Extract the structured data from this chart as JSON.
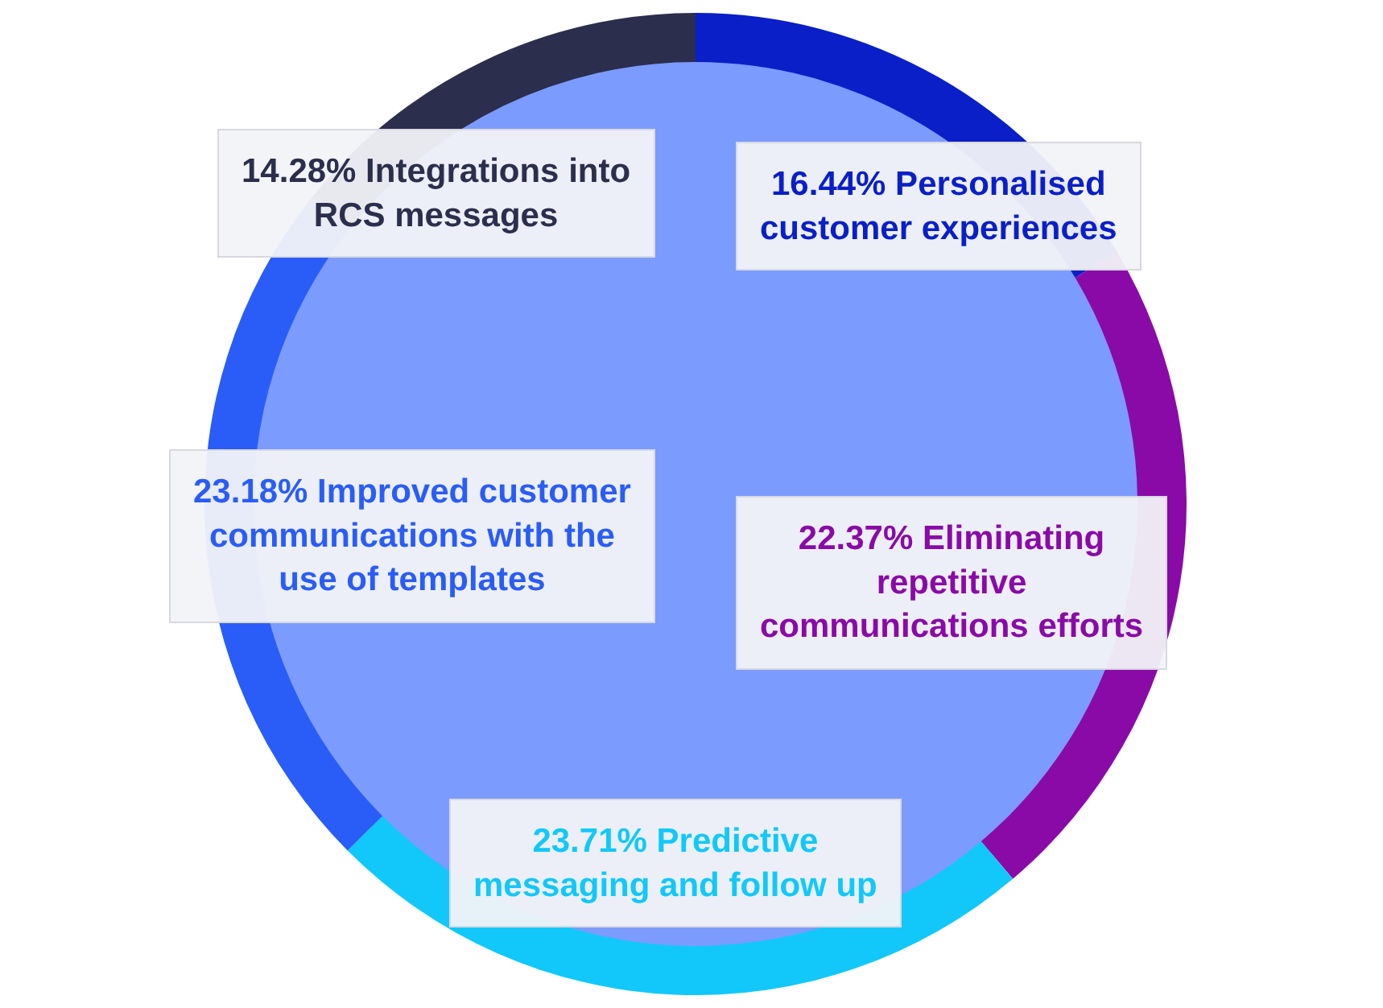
{
  "chart_data": {
    "type": "donut",
    "categories": [
      "Personalised customer experiences",
      "Eliminating repetitive communications efforts",
      "Predictive messaging and follow up",
      "Improved customer communications with the use of templates",
      "Integrations into RCS messages"
    ],
    "values": [
      16.44,
      22.37,
      23.71,
      23.18,
      14.28
    ],
    "colors": [
      "#0a1fc8",
      "#8a0aa8",
      "#12c8fa",
      "#2a5cf8",
      "#2b2e4c"
    ],
    "value_labels": [
      "16.44%",
      "22.37%",
      "23.71%",
      "23.18%",
      "14.28%"
    ],
    "legend": false
  }
}
